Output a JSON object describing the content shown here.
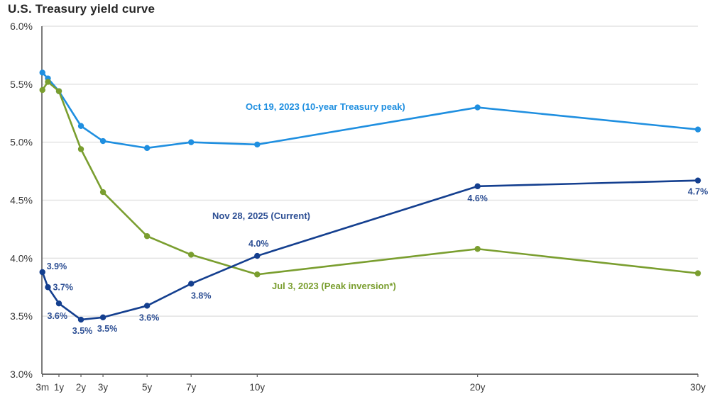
{
  "chart_data": {
    "type": "line",
    "title": "U.S. Treasury yield curve",
    "xlabel": "",
    "ylabel": "",
    "x_maturity_years": [
      0.25,
      0.5,
      1,
      2,
      3,
      5,
      7,
      10,
      20,
      30
    ],
    "x_tick_years": [
      0.25,
      1,
      2,
      3,
      5,
      7,
      10,
      20,
      30
    ],
    "x_tick_labels": [
      "3m",
      "1y",
      "2y",
      "3y",
      "5y",
      "7y",
      "10y",
      "20y",
      "30y"
    ],
    "ylim": [
      3.0,
      6.0
    ],
    "y_ticks": [
      3.0,
      3.5,
      4.0,
      4.5,
      5.0,
      5.5,
      6.0
    ],
    "y_tick_labels": [
      "3.0%",
      "3.5%",
      "4.0%",
      "4.5%",
      "5.0%",
      "5.5%",
      "6.0%"
    ],
    "grid": true,
    "series": [
      {
        "name": "Oct 19, 2023 (10-year Treasury peak)",
        "color": "#1f8fe0",
        "values": [
          5.6,
          5.55,
          5.44,
          5.14,
          5.01,
          4.95,
          5.0,
          4.98,
          5.3,
          5.11
        ]
      },
      {
        "name": "Jul 3, 2023 (Peak inversion*)",
        "color": "#7a9e2f",
        "values": [
          5.45,
          5.52,
          5.44,
          4.94,
          4.57,
          4.19,
          4.03,
          3.86,
          4.08,
          3.87
        ]
      },
      {
        "name": "Nov 28, 2025 (Current)",
        "color": "#143f8f",
        "values": [
          3.88,
          3.75,
          3.61,
          3.47,
          3.49,
          3.59,
          3.78,
          4.02,
          4.62,
          4.67
        ],
        "data_labels": [
          "3.9%",
          "3.7%",
          "3.6%",
          "3.5%",
          "3.5%",
          "3.6%",
          "3.8%",
          "4.0%",
          "4.6%",
          "4.7%"
        ]
      }
    ],
    "label_color_current": "#2d4f94"
  }
}
